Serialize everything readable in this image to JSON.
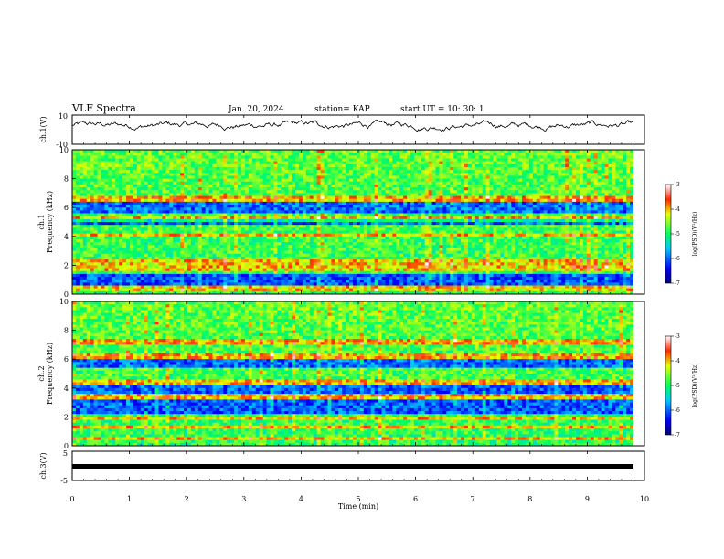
{
  "header": {
    "title": "VLF Spectra",
    "date": "Jan. 20, 2024",
    "station": "station= KAP",
    "start": "start  UT  =   10: 30: 1"
  },
  "chart_data": [
    {
      "panel": "ch1-waveform",
      "type": "line",
      "ylabel": "ch.1(V)",
      "ylim": [
        -10,
        10
      ],
      "yticks": [
        "10",
        "-10"
      ],
      "xlim": [
        0,
        10
      ],
      "note": "noisy time-series of ch.1 voltage, roughly -2 to 8 V"
    },
    {
      "panel": "ch1-spectrogram",
      "type": "heatmap",
      "ylabel": "ch.1 Frequency (kHz)",
      "ylim": [
        0,
        10
      ],
      "yticks": [
        "0",
        "2",
        "4",
        "6",
        "8",
        "10"
      ],
      "xlim": [
        0,
        10
      ],
      "colorbar": {
        "label": "log(PSD)(V²/Hz)",
        "range": [
          -7,
          -3
        ],
        "ticks": [
          "-3",
          "-4",
          "-5",
          "-6",
          "-7"
        ]
      },
      "quiet_bands_khz": [
        [
          5.6,
          6.3
        ],
        [
          4.8,
          5.1
        ],
        [
          0.6,
          1.4
        ]
      ],
      "strong_lines_khz": [
        0.4,
        1.8,
        2.0,
        2.3,
        4.1,
        5.2,
        6.6
      ]
    },
    {
      "panel": "ch2-spectrogram",
      "type": "heatmap",
      "ylabel": "ch.2 Frequency (kHz)",
      "ylim": [
        0,
        10
      ],
      "yticks": [
        "0",
        "2",
        "4",
        "6",
        "8",
        "10"
      ],
      "xlim": [
        0,
        10
      ],
      "colorbar": {
        "label": "log(PSD)(V²/Hz)",
        "range": [
          -7,
          -3
        ],
        "ticks": [
          "-3",
          "-4",
          "-5",
          "-6",
          "-7"
        ]
      },
      "quiet_bands_khz": [
        [
          2.3,
          3.2
        ],
        [
          3.6,
          4.2
        ],
        [
          5.4,
          6.0
        ]
      ],
      "strong_lines_khz": [
        0.5,
        1.3,
        1.9,
        3.4,
        4.4,
        6.2,
        7.2
      ]
    },
    {
      "panel": "ch3-waveform",
      "type": "line",
      "ylabel": "ch.3(V)",
      "ylim": [
        -5,
        5
      ],
      "yticks": [
        "5",
        "-5"
      ],
      "xlim": [
        0,
        10
      ],
      "note": "flat trace near -1 V"
    }
  ],
  "xaxis": {
    "label": "Time (min)",
    "ticks": [
      "0",
      "1",
      "2",
      "3",
      "4",
      "5",
      "6",
      "7",
      "8",
      "9",
      "10"
    ]
  },
  "colors": {
    "low": "#0000c8",
    "mid": "#00e070",
    "high": "#ff0000",
    "ink": "#000000"
  }
}
